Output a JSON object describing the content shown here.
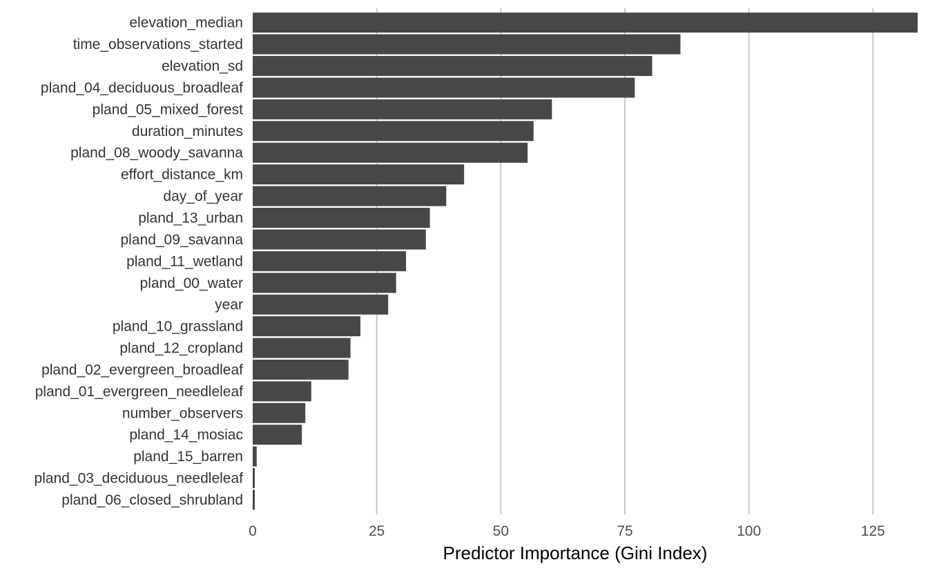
{
  "chart_data": {
    "type": "bar",
    "orientation": "horizontal",
    "title": "",
    "xlabel": "Predictor Importance (Gini Index)",
    "ylabel": "",
    "xlim": [
      0,
      134
    ],
    "xticks": [
      0,
      25,
      50,
      75,
      100,
      125
    ],
    "grid": "vertical major gridlines",
    "bar_color": "#474747",
    "grid_color": "#c8c8c8",
    "categories": [
      "elevation_median",
      "time_observations_started",
      "elevation_sd",
      "pland_04_deciduous_broadleaf",
      "pland_05_mixed_forest",
      "duration_minutes",
      "pland_08_woody_savanna",
      "effort_distance_km",
      "day_of_year",
      "pland_13_urban",
      "pland_09_savanna",
      "pland_11_wetland",
      "pland_00_water",
      "year",
      "pland_10_grassland",
      "pland_12_cropland",
      "pland_02_evergreen_broadleaf",
      "pland_01_evergreen_needleleaf",
      "number_observers",
      "pland_14_mosiac",
      "pland_15_barren",
      "pland_03_deciduous_needleleaf",
      "pland_06_closed_shrubland"
    ],
    "values": [
      134.0,
      86.2,
      80.5,
      77.0,
      60.3,
      56.6,
      55.4,
      42.6,
      39.0,
      35.7,
      34.9,
      30.9,
      28.9,
      27.3,
      21.7,
      19.7,
      19.3,
      11.8,
      10.6,
      9.9,
      0.8,
      0.2,
      0.1
    ]
  }
}
